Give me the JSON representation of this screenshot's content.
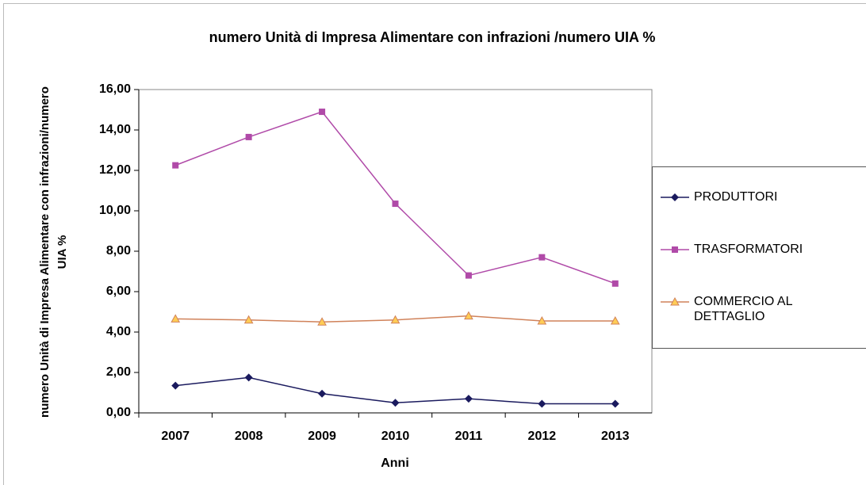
{
  "chart_data": {
    "type": "line",
    "title": "numero Unità di Impresa Alimentare con infrazioni /numero UIA %",
    "x_label": "Anni",
    "y_label": "numero Unità di Impresa Alimentare con infrazioni/numero UIA %",
    "categories": [
      "2007",
      "2008",
      "2009",
      "2010",
      "2011",
      "2012",
      "2013"
    ],
    "series": [
      {
        "name": "PRODUTTORI",
        "color": "#1a1a5e",
        "values": [
          1.35,
          1.75,
          0.95,
          0.5,
          0.7,
          0.45,
          0.45
        ]
      },
      {
        "name": "TRASFORMATORI",
        "color": "#b04aa8",
        "values": [
          12.25,
          13.65,
          14.9,
          10.35,
          6.8,
          7.7,
          6.4
        ]
      },
      {
        "name": "COMMERCIO AL DETTAGLIO",
        "color": "#d0825a",
        "values": [
          4.65,
          4.6,
          4.5,
          4.6,
          4.8,
          4.55,
          4.55
        ]
      }
    ],
    "ylim": [
      0,
      16
    ],
    "yticks": [
      {
        "value": 0,
        "label": "0,00"
      },
      {
        "value": 2,
        "label": "2,00"
      },
      {
        "value": 4,
        "label": "4,00"
      },
      {
        "value": 6,
        "label": "6,00"
      },
      {
        "value": 8,
        "label": "8,00"
      },
      {
        "value": 10,
        "label": "10,00"
      },
      {
        "value": 12,
        "label": "12,00"
      },
      {
        "value": 14,
        "label": "14,00"
      },
      {
        "value": 16,
        "label": "16,00"
      }
    ],
    "legend": "right"
  }
}
